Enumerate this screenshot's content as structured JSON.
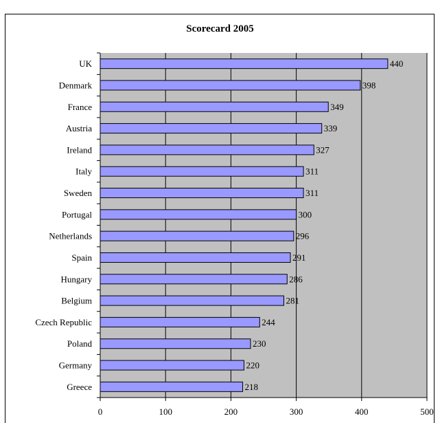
{
  "chart_data": {
    "type": "bar",
    "orientation": "horizontal",
    "title": "Scorecard 2005",
    "xlabel": "",
    "ylabel": "",
    "categories": [
      "UK",
      "Denmark",
      "France",
      "Austria",
      "Ireland",
      "Italy",
      "Sweden",
      "Portugal",
      "Netherlands",
      "Spain",
      "Hungary",
      "Belgium",
      "Czech Republic",
      "Poland",
      "Germany",
      "Greece"
    ],
    "values": [
      440,
      398,
      349,
      339,
      327,
      311,
      311,
      300,
      296,
      291,
      286,
      281,
      244,
      230,
      220,
      218
    ],
    "xlim": [
      0,
      500
    ],
    "xticks": [
      0,
      100,
      200,
      300,
      400,
      500
    ],
    "grid": "vertical",
    "legend": "none",
    "colors": {
      "bar_fill": "#9999ff",
      "bar_edge": "#000000",
      "plot_background": "#c0c0c0",
      "gridline": "#000000"
    }
  }
}
